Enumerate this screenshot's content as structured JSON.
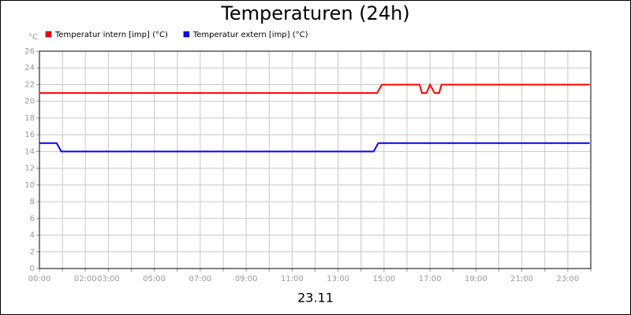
{
  "chart_data": {
    "type": "line",
    "title": "Temperaturen (24h)",
    "xlabel": "23.11",
    "ylabel": "°C",
    "xlim": [
      0,
      24
    ],
    "ylim": [
      0,
      26
    ],
    "yticks": [
      0,
      2,
      4,
      6,
      8,
      10,
      12,
      14,
      16,
      18,
      20,
      22,
      24,
      26
    ],
    "xticks": [
      {
        "value": 0,
        "label": "00:00"
      },
      {
        "value": 1,
        "label": null
      },
      {
        "value": 2,
        "label": "02:00"
      },
      {
        "value": 3,
        "label": "03:00"
      },
      {
        "value": 4,
        "label": null
      },
      {
        "value": 5,
        "label": "05:00"
      },
      {
        "value": 6,
        "label": null
      },
      {
        "value": 7,
        "label": "07:00"
      },
      {
        "value": 8,
        "label": null
      },
      {
        "value": 9,
        "label": "09:00"
      },
      {
        "value": 10,
        "label": null
      },
      {
        "value": 11,
        "label": "11:00"
      },
      {
        "value": 12,
        "label": null
      },
      {
        "value": 13,
        "label": "13:00"
      },
      {
        "value": 14,
        "label": null
      },
      {
        "value": 15,
        "label": "15:00"
      },
      {
        "value": 16,
        "label": null
      },
      {
        "value": 17,
        "label": "17:00"
      },
      {
        "value": 18,
        "label": null
      },
      {
        "value": 19,
        "label": "19:00"
      },
      {
        "value": 20,
        "label": null
      },
      {
        "value": 21,
        "label": "21:00"
      },
      {
        "value": 22,
        "label": null
      },
      {
        "value": 23,
        "label": "23:00"
      },
      {
        "value": 24,
        "label": null
      }
    ],
    "grid": true,
    "series": [
      {
        "name": "Temperatur intern [imp] (°C)",
        "color": "#ff0000",
        "x": [
          0,
          14.7,
          14.9,
          16.55,
          16.65,
          16.85,
          17.0,
          17.2,
          17.4,
          17.5,
          23.95
        ],
        "values": [
          21,
          21,
          22,
          22,
          21,
          21,
          22,
          21,
          21,
          22,
          22
        ]
      },
      {
        "name": "Temperatur extern [imp] (°C)",
        "color": "#0000ff",
        "x": [
          0,
          0.75,
          0.95,
          14.55,
          14.75,
          23.95
        ],
        "values": [
          15,
          15,
          14,
          14,
          15,
          15
        ]
      }
    ]
  }
}
